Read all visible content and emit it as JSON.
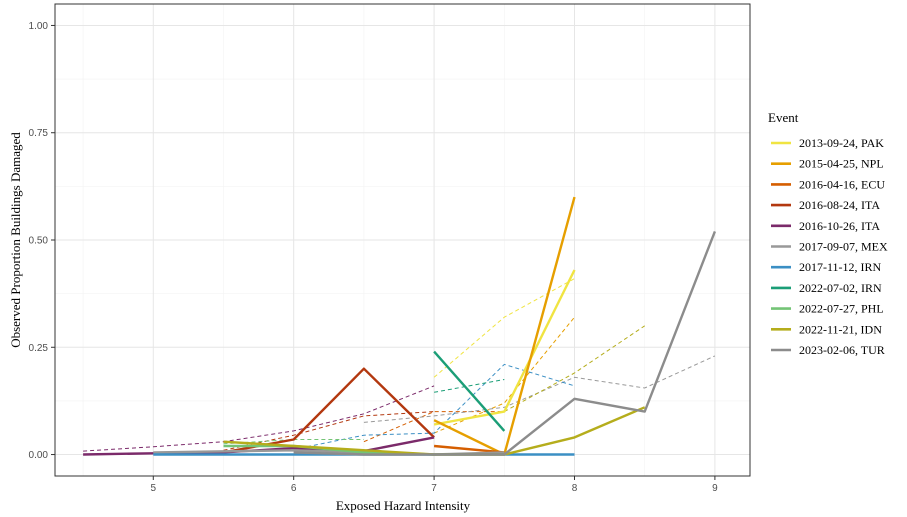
{
  "chart_data": {
    "type": "line",
    "title": "",
    "xlabel": "Exposed Hazard Intensity",
    "ylabel": "Observed Proportion Buildings Damaged",
    "xlim": [
      4.3,
      9.25
    ],
    "ylim": [
      -0.05,
      1.05
    ],
    "x_ticks": [
      5,
      6,
      7,
      8,
      9
    ],
    "x_tick_labels": [
      "5",
      "6",
      "7",
      "8",
      "9"
    ],
    "y_ticks": [
      0,
      0.25,
      0.5,
      0.75,
      1
    ],
    "y_tick_labels": [
      "0.00",
      "0.25",
      "0.50",
      "0.75",
      "1.00"
    ],
    "grid": true,
    "legend_title": "Event",
    "legend_position": "right",
    "series": [
      {
        "name": "2013-09-24, PAK",
        "color": "#f0e442",
        "observed": [
          [
            7,
            0.07
          ],
          [
            7.5,
            0.1
          ],
          [
            8,
            0.43
          ]
        ],
        "modelled": [
          [
            7,
            0.18
          ],
          [
            7.5,
            0.32
          ],
          [
            8,
            0.41
          ]
        ]
      },
      {
        "name": "2015-04-25, NPL",
        "color": "#e69f00",
        "observed": [
          [
            7,
            0.08
          ],
          [
            7.5,
            0.0
          ],
          [
            8,
            0.6
          ]
        ],
        "modelled": [
          [
            7,
            0.05
          ],
          [
            7.5,
            0.12
          ],
          [
            8,
            0.32
          ]
        ]
      },
      {
        "name": "2016-04-16, ECU",
        "color": "#d55e00",
        "observed": [
          [
            7,
            0.02
          ],
          [
            7.5,
            0.005
          ]
        ],
        "modelled": [
          [
            6.5,
            0.03
          ],
          [
            7,
            0.1
          ],
          [
            7.5,
            0.1
          ]
        ]
      },
      {
        "name": "2016-08-24, ITA",
        "color": "#b3380f",
        "observed": [
          [
            5.5,
            0.005
          ],
          [
            6,
            0.035
          ],
          [
            6.5,
            0.2
          ],
          [
            7,
            0.04
          ]
        ],
        "modelled": [
          [
            5.5,
            0.01
          ],
          [
            6,
            0.045
          ],
          [
            6.5,
            0.09
          ],
          [
            7,
            0.1
          ]
        ]
      },
      {
        "name": "2016-10-26, ITA",
        "color": "#7b2a6a",
        "observed": [
          [
            4.5,
            0.0
          ],
          [
            5,
            0.003
          ],
          [
            5.5,
            0.005
          ],
          [
            6,
            0.015
          ],
          [
            6.5,
            0.008
          ],
          [
            7,
            0.04
          ]
        ],
        "modelled": [
          [
            4.5,
            0.008
          ],
          [
            5,
            0.018
          ],
          [
            5.5,
            0.03
          ],
          [
            6,
            0.055
          ],
          [
            6.5,
            0.095
          ],
          [
            7,
            0.16
          ]
        ]
      },
      {
        "name": "2017-09-07, MEX",
        "color": "#999999",
        "observed": [
          [
            5,
            0.005
          ],
          [
            6,
            0.01
          ],
          [
            7,
            0.0
          ],
          [
            7.5,
            0.005
          ]
        ],
        "modelled": [
          [
            6.5,
            0.075
          ],
          [
            7,
            0.09
          ],
          [
            7.5,
            0.11
          ],
          [
            8,
            0.18
          ],
          [
            8.5,
            0.155
          ],
          [
            9,
            0.23
          ]
        ]
      },
      {
        "name": "2017-11-12, IRN",
        "color": "#3b8fc4",
        "observed": [
          [
            5,
            0.0
          ],
          [
            6,
            0.0
          ],
          [
            7,
            0.0
          ],
          [
            7.5,
            0.0
          ],
          [
            8,
            0.0
          ]
        ],
        "modelled": [
          [
            5,
            0.002
          ],
          [
            6,
            0.012
          ],
          [
            6.5,
            0.045
          ],
          [
            7,
            0.05
          ],
          [
            7.5,
            0.21
          ],
          [
            8,
            0.16
          ]
        ]
      },
      {
        "name": "2022-07-02, IRN",
        "color": "#1b9e77",
        "observed": [
          [
            7,
            0.24
          ],
          [
            7.5,
            0.055
          ]
        ],
        "modelled": [
          [
            7,
            0.145
          ],
          [
            7.5,
            0.175
          ]
        ]
      },
      {
        "name": "2022-07-27, PHL",
        "color": "#74c476",
        "observed": [
          [
            5.5,
            0.02
          ],
          [
            6,
            0.02
          ],
          [
            6.5,
            0.005
          ],
          [
            7,
            0.0
          ]
        ],
        "modelled": [
          [
            5.5,
            0.025
          ],
          [
            6,
            0.035
          ],
          [
            6.5,
            0.035
          ]
        ]
      },
      {
        "name": "2022-11-21, IDN",
        "color": "#b5ad1c",
        "observed": [
          [
            5.5,
            0.03
          ],
          [
            6,
            0.02
          ],
          [
            7,
            0.0
          ],
          [
            7.5,
            0.0
          ],
          [
            8,
            0.04
          ],
          [
            8.5,
            0.11
          ]
        ],
        "modelled": [
          [
            7.5,
            0.1
          ],
          [
            8,
            0.19
          ],
          [
            8.5,
            0.3
          ]
        ]
      },
      {
        "name": "2023-02-06, TUR",
        "color": "#8c8c8c",
        "observed": [
          [
            6,
            0.005
          ],
          [
            6.5,
            0.0
          ],
          [
            7,
            0.0
          ],
          [
            7.5,
            0.0
          ],
          [
            8,
            0.13
          ],
          [
            8.5,
            0.1
          ],
          [
            9,
            0.52
          ]
        ],
        "modelled": []
      }
    ]
  }
}
